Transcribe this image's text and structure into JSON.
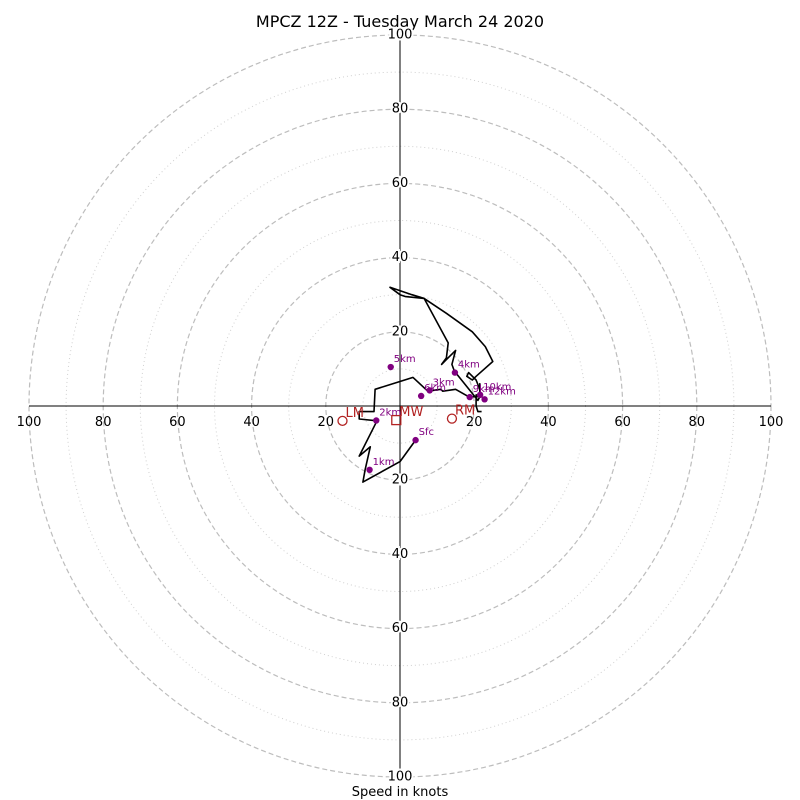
{
  "chart_data": {
    "type": "hodograph",
    "title": "MPCZ 12Z - Tuesday March 24 2020",
    "xlabel": "Speed in knots",
    "range": 100,
    "rings": {
      "major": [
        20,
        40,
        60,
        80,
        100
      ],
      "minor": [
        10,
        30,
        50,
        70,
        90
      ]
    },
    "x_ticks": [
      {
        "value": -100,
        "label": "100"
      },
      {
        "value": -80,
        "label": "80"
      },
      {
        "value": -60,
        "label": "60"
      },
      {
        "value": -40,
        "label": "40"
      },
      {
        "value": -20,
        "label": "20"
      },
      {
        "value": 20,
        "label": "20"
      },
      {
        "value": 40,
        "label": "40"
      },
      {
        "value": 60,
        "label": "60"
      },
      {
        "value": 80,
        "label": "80"
      },
      {
        "value": 100,
        "label": "100"
      }
    ],
    "y_ticks": [
      {
        "value": 100,
        "label": "100"
      },
      {
        "value": 80,
        "label": "80"
      },
      {
        "value": 60,
        "label": "60"
      },
      {
        "value": 40,
        "label": "40"
      },
      {
        "value": 20,
        "label": "20"
      },
      {
        "value": -20,
        "label": "20"
      },
      {
        "value": -40,
        "label": "40"
      },
      {
        "value": -60,
        "label": "60"
      },
      {
        "value": -80,
        "label": "80"
      },
      {
        "value": -100,
        "label": "100"
      }
    ],
    "trace": [
      [
        4.2,
        -9.2
      ],
      [
        0,
        -15
      ],
      [
        -10,
        -20.5
      ],
      [
        -9.4,
        -17.2
      ],
      [
        -8,
        -11
      ],
      [
        -11,
        -13.5
      ],
      [
        -6.2,
        -4
      ],
      [
        -11,
        -3.5
      ],
      [
        -11,
        -1.5
      ],
      [
        -7,
        -1.5
      ],
      [
        -6.7,
        4.5
      ],
      [
        3.5,
        7.7
      ],
      [
        7.5,
        4
      ],
      [
        11,
        4.5
      ],
      [
        11.5,
        4
      ],
      [
        15,
        4.5
      ],
      [
        18.5,
        2.5
      ],
      [
        21.5,
        2.5
      ],
      [
        21,
        1.5
      ],
      [
        15,
        9
      ],
      [
        15,
        8.5
      ],
      [
        14,
        11.2
      ],
      [
        15,
        15
      ],
      [
        12.5,
        12.5
      ],
      [
        11.2,
        11.2
      ],
      [
        12.5,
        13
      ],
      [
        13,
        17
      ],
      [
        6.5,
        29
      ],
      [
        3.2,
        30
      ],
      [
        -2.7,
        32
      ],
      [
        0,
        30
      ],
      [
        1.5,
        29.5
      ],
      [
        6.5,
        29
      ],
      [
        12.5,
        25
      ],
      [
        19.5,
        20
      ],
      [
        23,
        16
      ],
      [
        25,
        12
      ],
      [
        20.5,
        8
      ],
      [
        19.5,
        7
      ],
      [
        18,
        8
      ],
      [
        18.5,
        9
      ],
      [
        20.5,
        7
      ],
      [
        21.5,
        4.5
      ],
      [
        21.5,
        6
      ],
      [
        21.5,
        5.5
      ],
      [
        21.5,
        3
      ],
      [
        20.5,
        3
      ],
      [
        20.5,
        0
      ],
      [
        21,
        -1.5
      ],
      [
        22,
        -1.5
      ]
    ],
    "height_points": [
      {
        "label": "Sfc",
        "u": 4.2,
        "v": -9.2
      },
      {
        "label": "1km",
        "u": -8.2,
        "v": -17.2
      },
      {
        "label": "2km",
        "u": -6.4,
        "v": -3.9
      },
      {
        "label": "3km",
        "u": 8,
        "v": 4.2
      },
      {
        "label": "4km",
        "u": 14.8,
        "v": 9
      },
      {
        "label": "5km",
        "u": -2.5,
        "v": 10.5
      },
      {
        "label": "6km",
        "u": 5.7,
        "v": 2.7
      },
      {
        "label": "9km",
        "u": 18.8,
        "v": 2.4
      },
      {
        "label": "10km",
        "u": 21.6,
        "v": 3
      },
      {
        "label": "12km",
        "u": 22.8,
        "v": 1.8
      }
    ],
    "motion_markers": [
      {
        "label": "LM",
        "u": -15.5,
        "v": -4,
        "shape": "circle"
      },
      {
        "label": "MW",
        "u": -1,
        "v": -3.8,
        "shape": "square"
      },
      {
        "label": "RM",
        "u": 14,
        "v": -3.4,
        "shape": "circle"
      }
    ],
    "colors": {
      "trace": "#000000",
      "height_points": "#800080",
      "motion_markers": "#b22222",
      "rings": "#bdbdbd"
    }
  }
}
